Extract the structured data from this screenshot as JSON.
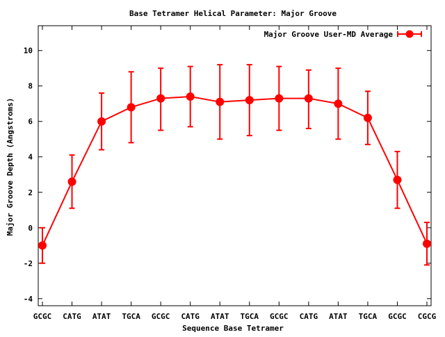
{
  "chart_data": {
    "type": "line",
    "title": "Base Tetramer Helical Parameter: Major Groove",
    "xlabel": "Sequence Base Tetramer",
    "ylabel": "Major Groove Depth (Angstroms)",
    "ylim": [
      -4.4,
      11.4
    ],
    "yticks": [
      -4,
      -2,
      0,
      2,
      4,
      6,
      8,
      10
    ],
    "categories": [
      "GCGC",
      "CATG",
      "ATAT",
      "TGCA",
      "GCGC",
      "CATG",
      "ATAT",
      "TGCA",
      "GCGC",
      "CATG",
      "ATAT",
      "TGCA",
      "GCGC",
      "CGCG"
    ],
    "legend_position": "top-right",
    "grid": false,
    "series": [
      {
        "name": "Major Groove User-MD Average",
        "color": "#ff0000",
        "points": [
          {
            "x": 0,
            "y": -1.0,
            "err_lo": -2.0,
            "err_hi": 0.0
          },
          {
            "x": 1,
            "y": 2.6,
            "err_lo": 1.1,
            "err_hi": 4.1
          },
          {
            "x": 2,
            "y": 6.0,
            "err_lo": 4.4,
            "err_hi": 7.6
          },
          {
            "x": 3,
            "y": 6.8,
            "err_lo": 4.8,
            "err_hi": 8.8
          },
          {
            "x": 4,
            "y": 7.3,
            "err_lo": 5.5,
            "err_hi": 9.0
          },
          {
            "x": 5,
            "y": 7.4,
            "err_lo": 5.7,
            "err_hi": 9.1
          },
          {
            "x": 6,
            "y": 7.1,
            "err_lo": 5.0,
            "err_hi": 9.2
          },
          {
            "x": 7,
            "y": 7.2,
            "err_lo": 5.2,
            "err_hi": 9.2
          },
          {
            "x": 8,
            "y": 7.3,
            "err_lo": 5.5,
            "err_hi": 9.1
          },
          {
            "x": 9,
            "y": 7.3,
            "err_lo": 5.6,
            "err_hi": 8.9
          },
          {
            "x": 10,
            "y": 7.0,
            "err_lo": 5.0,
            "err_hi": 9.0
          },
          {
            "x": 11,
            "y": 6.2,
            "err_lo": 4.7,
            "err_hi": 7.7
          },
          {
            "x": 12,
            "y": 2.7,
            "err_lo": 1.1,
            "err_hi": 4.3
          },
          {
            "x": 13,
            "y": -0.9,
            "err_lo": -2.1,
            "err_hi": 0.3
          }
        ]
      }
    ]
  }
}
